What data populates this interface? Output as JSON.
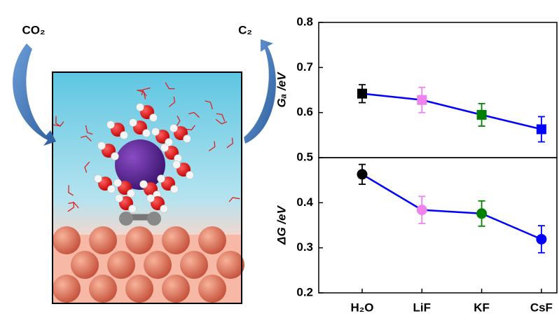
{
  "illustration": {
    "reactant": "CO₂",
    "product": "C₂"
  },
  "chart_data": [
    {
      "type": "line",
      "y_label": "Gₐ /eV",
      "categories": [
        "H₂O",
        "LiF",
        "KF",
        "CsF"
      ],
      "values": [
        0.642,
        0.628,
        0.595,
        0.563
      ],
      "errors": [
        0.02,
        0.028,
        0.025,
        0.028
      ],
      "line_color": "#0000ff",
      "point_colors": [
        "#000000",
        "#ee82ee",
        "#008000",
        "#0000ff"
      ],
      "marker": "square",
      "ylim": [
        0.5,
        0.8
      ],
      "yticks": [
        0.6,
        0.7,
        0.8
      ]
    },
    {
      "type": "line",
      "y_label": "ΔG /eV",
      "categories": [
        "H₂O",
        "LiF",
        "KF",
        "CsF"
      ],
      "values": [
        0.463,
        0.384,
        0.376,
        0.319
      ],
      "errors": [
        0.022,
        0.03,
        0.028,
        0.03
      ],
      "line_color": "#0000ff",
      "point_colors": [
        "#000000",
        "#ee82ee",
        "#008000",
        "#0000ff"
      ],
      "marker": "circle",
      "ylim": [
        0.2,
        0.5
      ],
      "yticks": [
        0.2,
        0.3,
        0.4,
        0.5
      ]
    }
  ]
}
